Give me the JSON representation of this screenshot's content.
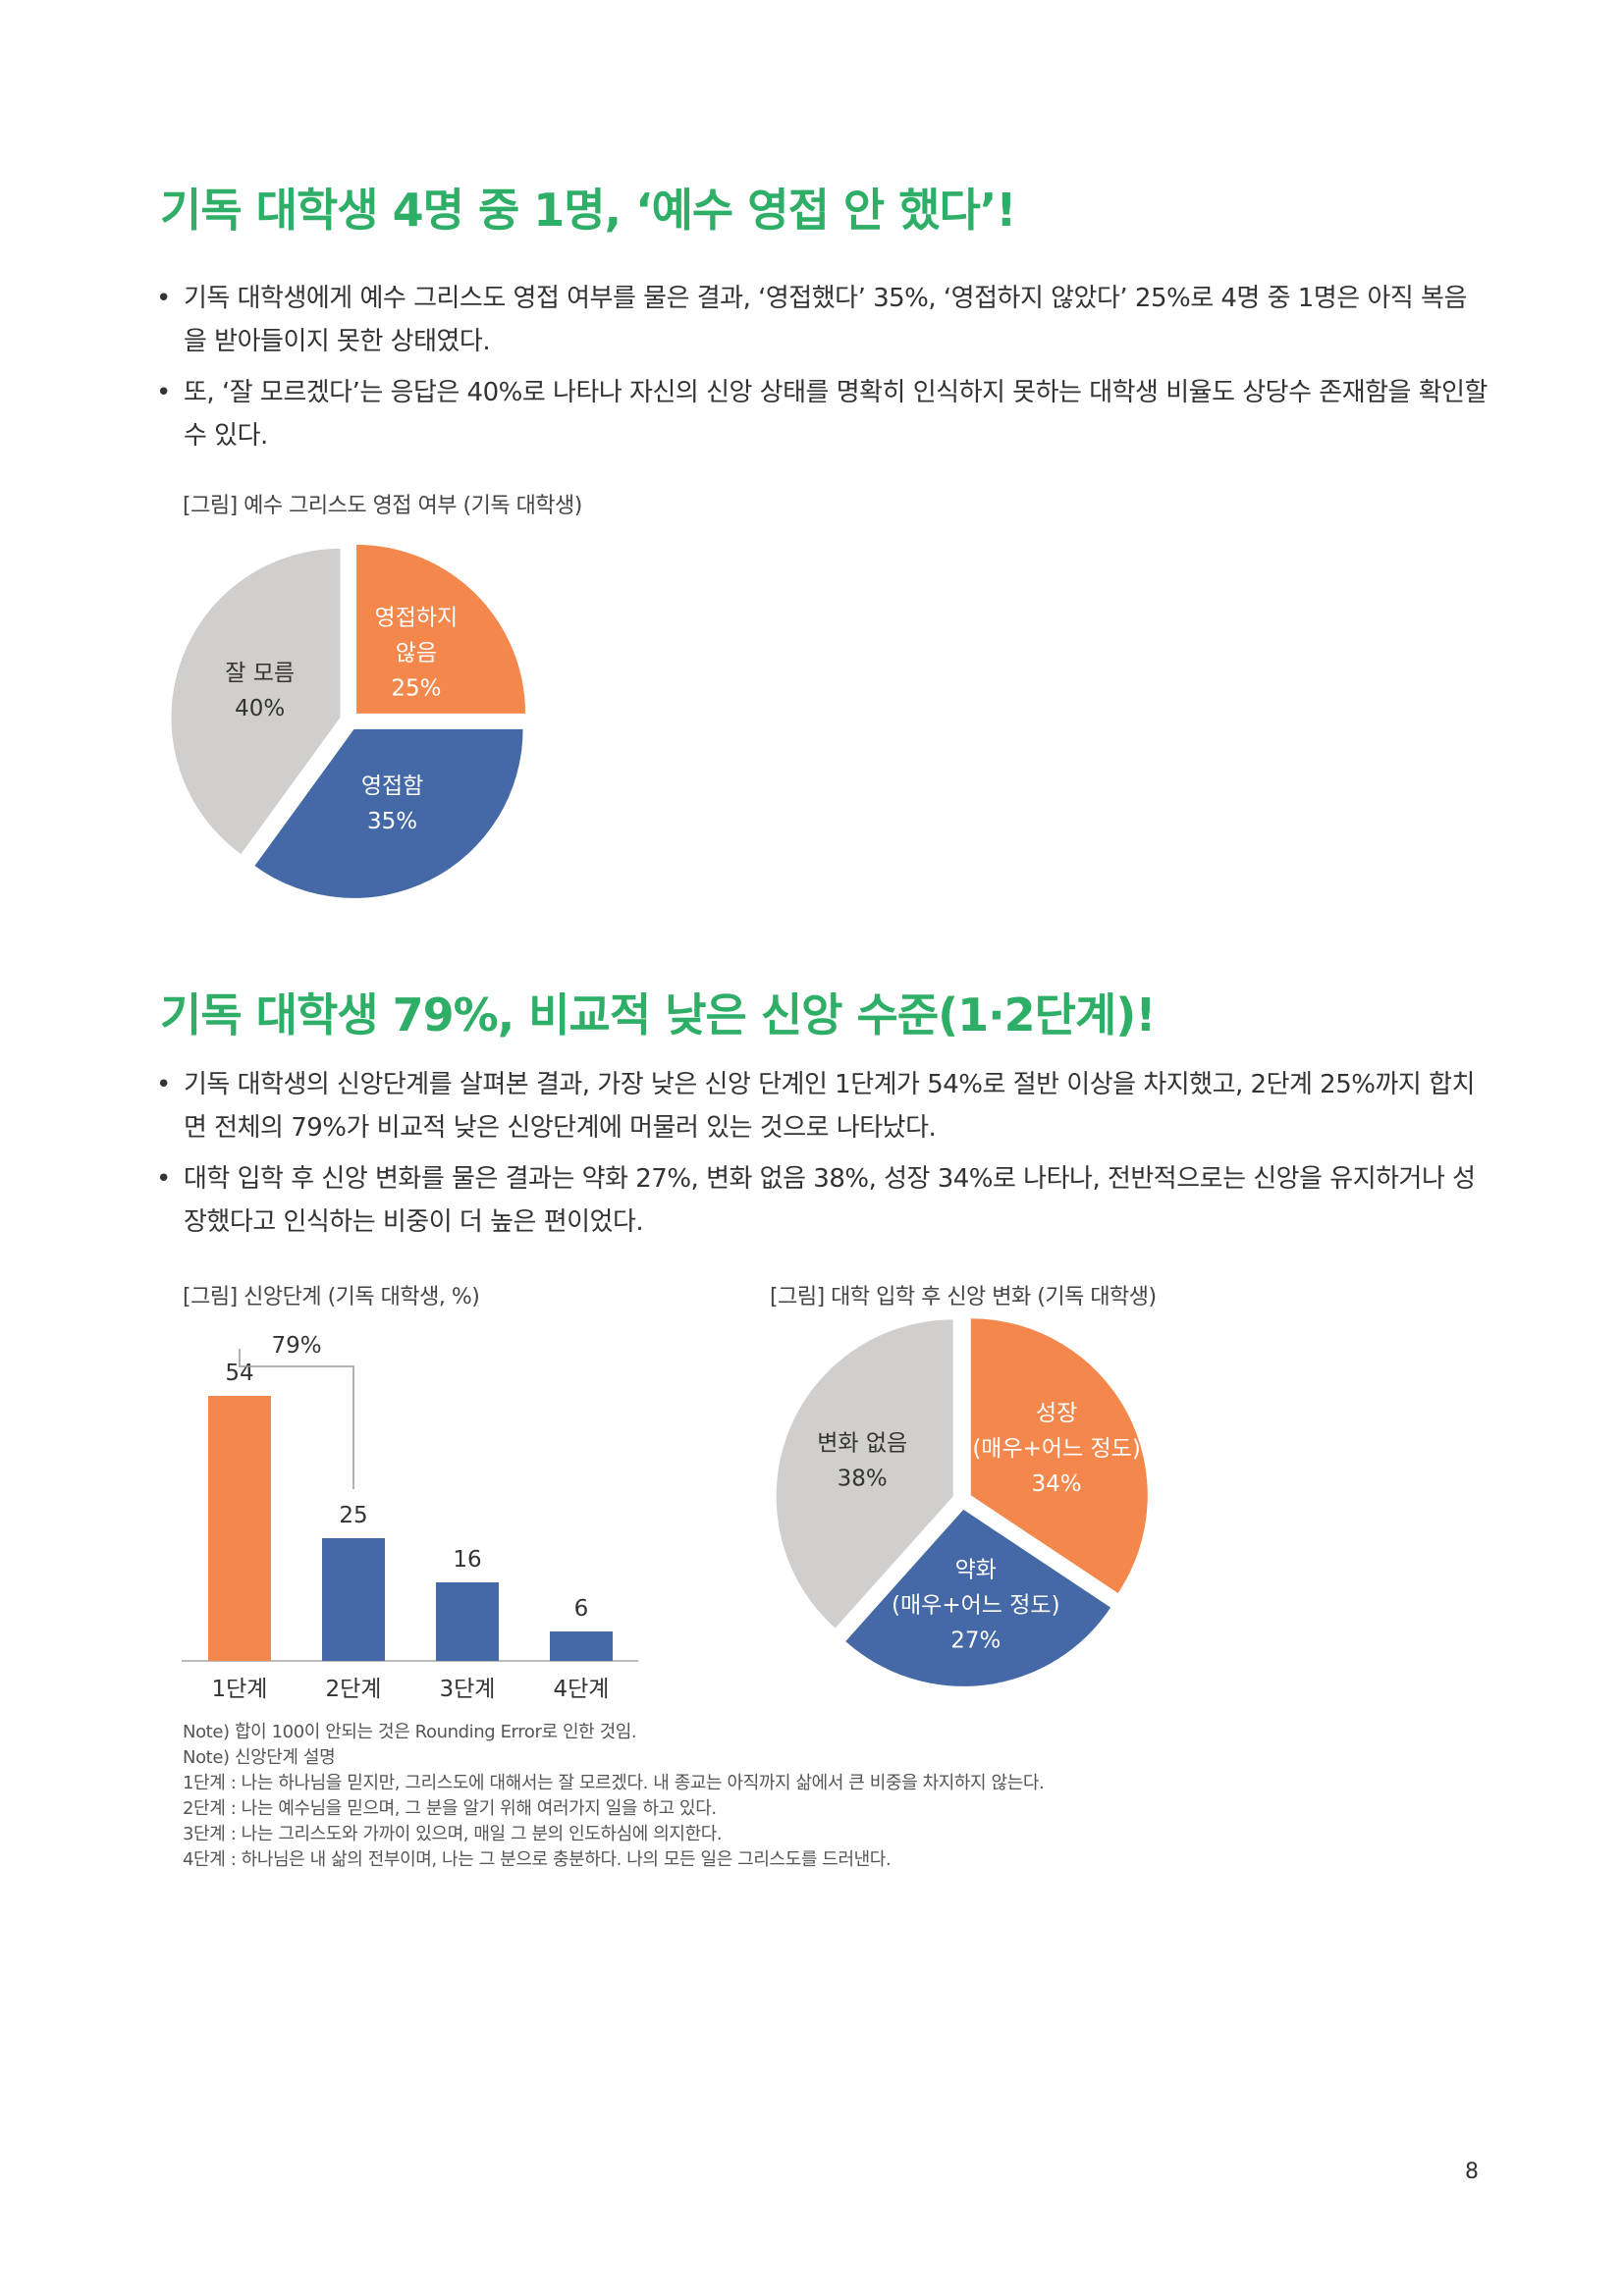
{
  "section1": {
    "heading": "기독 대학생 4명 중 1명, ‘예수 영접 안 했다’!",
    "bullets": [
      "기독 대학생에게 예수 그리스도 영접 여부를 물은 결과, ‘영접했다’ 35%, ‘영접하지 않았다’ 25%로 4명 중 1명은 아직 복음을 받아들이지 못한 상태였다.",
      "또, ‘잘 모르겠다’는 응답은 40%로 나타나 자신의 신앙 상태를 명확히 인식하지 못하는 대학생 비율도 상당수 존재함을 확인할 수 있다."
    ],
    "caption": "[그림] 예수 그리스도 영접 여부 (기독 대학생)"
  },
  "section2": {
    "heading": "기독 대학생 79%, 비교적 낮은 신앙 수준(1·2단계)!",
    "bullets": [
      "기독 대학생의 신앙단계를 살펴본 결과, 가장 낮은 신앙 단계인 1단계가 54%로 절반 이상을 차지했고, 2단계 25%까지 합치면 전체의 79%가 비교적 낮은 신앙단계에 머물러 있는 것으로 나타났다.",
      "대학 입학 후 신앙 변화를 물은 결과는 약화 27%, 변화 없음 38%, 성장 34%로 나타나, 전반적으로는 신앙을 유지하거나 성장했다고 인식하는 비중이 더 높은 편이었다."
    ],
    "caption_bar": "[그림] 신앙단계 (기독 대학생, %)",
    "caption_pie": "[그림] 대학 입학 후 신앙 변화 (기독 대학생)"
  },
  "bullet_char": "•",
  "colors": {
    "heading": "#2fae67",
    "orange": "#f4874b",
    "blue": "#4469a6",
    "gray": "#d0cfcd"
  },
  "chart_data": [
    {
      "type": "pie",
      "categories": [
        "영접하지 않음",
        "영접함",
        "잘 모름"
      ],
      "values": [
        25,
        35,
        40
      ],
      "labels": [
        [
          "영접하지",
          "않음",
          "25%"
        ],
        [
          "영접함",
          "35%"
        ],
        [
          "잘 모름",
          "40%"
        ]
      ],
      "colors": [
        "#f4874b",
        "#4469a6",
        "#d0cfcd"
      ]
    },
    {
      "type": "bar",
      "categories": [
        "1단계",
        "2단계",
        "3단계",
        "4단계"
      ],
      "values": [
        54,
        25,
        16,
        6
      ],
      "value_labels": [
        "54",
        "25",
        "16",
        "6"
      ],
      "colors": [
        "#f4874b",
        "#4469a6",
        "#4469a6",
        "#4469a6"
      ],
      "bracket_label": "79%",
      "ylim": [
        0,
        60
      ]
    },
    {
      "type": "pie",
      "categories": [
        "성장(매우+어느 정도)",
        "약화(매우+어느 정도)",
        "변화 없음"
      ],
      "values": [
        34,
        27,
        38
      ],
      "labels": [
        [
          "성장",
          "(매우+어느 정도)",
          "34%"
        ],
        [
          "약화",
          "(매우+어느 정도)",
          "27%"
        ],
        [
          "변화 없음",
          "38%"
        ]
      ],
      "colors": [
        "#f4874b",
        "#4469a6",
        "#d0cfcd"
      ]
    }
  ],
  "notes": [
    "Note) 합이 100이 안되는 것은 Rounding Error로 인한 것임.",
    "Note) 신앙단계 설명",
    "1단계 : 나는 하나님을 믿지만, 그리스도에 대해서는 잘 모르겠다. 내 종교는 아직까지 삶에서 큰 비중을 차지하지 않는다.",
    "2단계 : 나는 예수님을 믿으며, 그 분을 알기 위해 여러가지 일을 하고 있다.",
    "3단계 : 나는 그리스도와 가까이 있으며, 매일 그 분의 인도하심에 의지한다.",
    "4단계 : 하나님은 내 삶의 전부이며, 나는 그 분으로 충분하다. 나의 모든 일은 그리스도를 드러낸다."
  ],
  "page_number": "8"
}
